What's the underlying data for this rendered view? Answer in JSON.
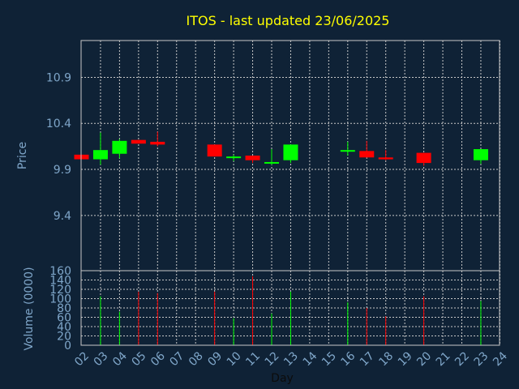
{
  "colors": {
    "background": "#0f2236",
    "title": "#ffff00",
    "axis_text": "#7fa6c9",
    "axis_line": "#c8c8c8",
    "grid": "#c8c8c8",
    "up": "#00ff00",
    "down": "#ff0000"
  },
  "chart_data": [
    {
      "type": "candlestick",
      "title": "ITOS - last updated 23/06/2025",
      "ylabel": "Price",
      "ylim": [
        8.8,
        11.3
      ],
      "yticks": [
        "10.9",
        "10.4",
        "9.9",
        "9.4"
      ],
      "ytick_values": [
        10.9,
        10.4,
        9.9,
        9.4
      ],
      "grid": true,
      "categories": [
        "02",
        "03",
        "04",
        "05",
        "06",
        "07",
        "08",
        "09",
        "10",
        "11",
        "12",
        "13",
        "14",
        "15",
        "16",
        "17",
        "18",
        "19",
        "20",
        "21",
        "22",
        "23",
        "24"
      ],
      "candles": [
        {
          "day": "02",
          "open": 10.06,
          "high": 10.06,
          "low": 10.01,
          "close": 10.01
        },
        {
          "day": "03",
          "open": 10.01,
          "high": 10.3,
          "low": 9.95,
          "close": 10.11
        },
        {
          "day": "04",
          "open": 10.07,
          "high": 10.23,
          "low": 10.02,
          "close": 10.21
        },
        {
          "day": "05",
          "open": 10.22,
          "high": 10.22,
          "low": 10.18,
          "close": 10.18
        },
        {
          "day": "06",
          "open": 10.2,
          "high": 10.31,
          "low": 10.15,
          "close": 10.17
        },
        {
          "day": "09",
          "open": 10.17,
          "high": 10.17,
          "low": 10.04,
          "close": 10.04
        },
        {
          "day": "10",
          "open": 10.03,
          "high": 10.06,
          "low": 9.99,
          "close": 10.04
        },
        {
          "day": "11",
          "open": 10.05,
          "high": 10.05,
          "low": 9.97,
          "close": 10.0
        },
        {
          "day": "12",
          "open": 9.97,
          "high": 10.12,
          "low": 9.95,
          "close": 9.98
        },
        {
          "day": "13",
          "open": 10.0,
          "high": 10.17,
          "low": 9.97,
          "close": 10.17
        },
        {
          "day": "16",
          "open": 10.1,
          "high": 10.2,
          "low": 10.05,
          "close": 10.11
        },
        {
          "day": "17",
          "open": 10.1,
          "high": 10.21,
          "low": 10.03,
          "close": 10.03
        },
        {
          "day": "18",
          "open": 10.03,
          "high": 10.11,
          "low": 10.0,
          "close": 10.01
        },
        {
          "day": "20",
          "open": 10.08,
          "high": 10.08,
          "low": 9.94,
          "close": 9.97
        },
        {
          "day": "23",
          "open": 10.0,
          "high": 10.12,
          "low": 9.96,
          "close": 10.12
        }
      ]
    },
    {
      "type": "bar",
      "ylabel": "Volume (0000)",
      "xlabel": "Day",
      "ylim": [
        0,
        160
      ],
      "yticks": [
        "160",
        "140",
        "120",
        "100",
        "80",
        "60",
        "40",
        "20",
        "0"
      ],
      "ytick_values": [
        160,
        140,
        120,
        100,
        80,
        60,
        40,
        20,
        0
      ],
      "grid": true,
      "categories": [
        "02",
        "03",
        "04",
        "05",
        "06",
        "07",
        "08",
        "09",
        "10",
        "11",
        "12",
        "13",
        "14",
        "15",
        "16",
        "17",
        "18",
        "19",
        "20",
        "21",
        "22",
        "23",
        "24"
      ],
      "bars": [
        {
          "day": "03",
          "value": 105,
          "direction": "up"
        },
        {
          "day": "04",
          "value": 72,
          "direction": "up"
        },
        {
          "day": "05",
          "value": 115,
          "direction": "down"
        },
        {
          "day": "06",
          "value": 112,
          "direction": "down"
        },
        {
          "day": "09",
          "value": 115,
          "direction": "down"
        },
        {
          "day": "10",
          "value": 58,
          "direction": "up"
        },
        {
          "day": "11",
          "value": 148,
          "direction": "down"
        },
        {
          "day": "12",
          "value": 68,
          "direction": "up"
        },
        {
          "day": "13",
          "value": 115,
          "direction": "up"
        },
        {
          "day": "16",
          "value": 92,
          "direction": "up"
        },
        {
          "day": "17",
          "value": 80,
          "direction": "down"
        },
        {
          "day": "18",
          "value": 62,
          "direction": "down"
        },
        {
          "day": "20",
          "value": 105,
          "direction": "down"
        },
        {
          "day": "23",
          "value": 95,
          "direction": "up"
        }
      ]
    }
  ]
}
